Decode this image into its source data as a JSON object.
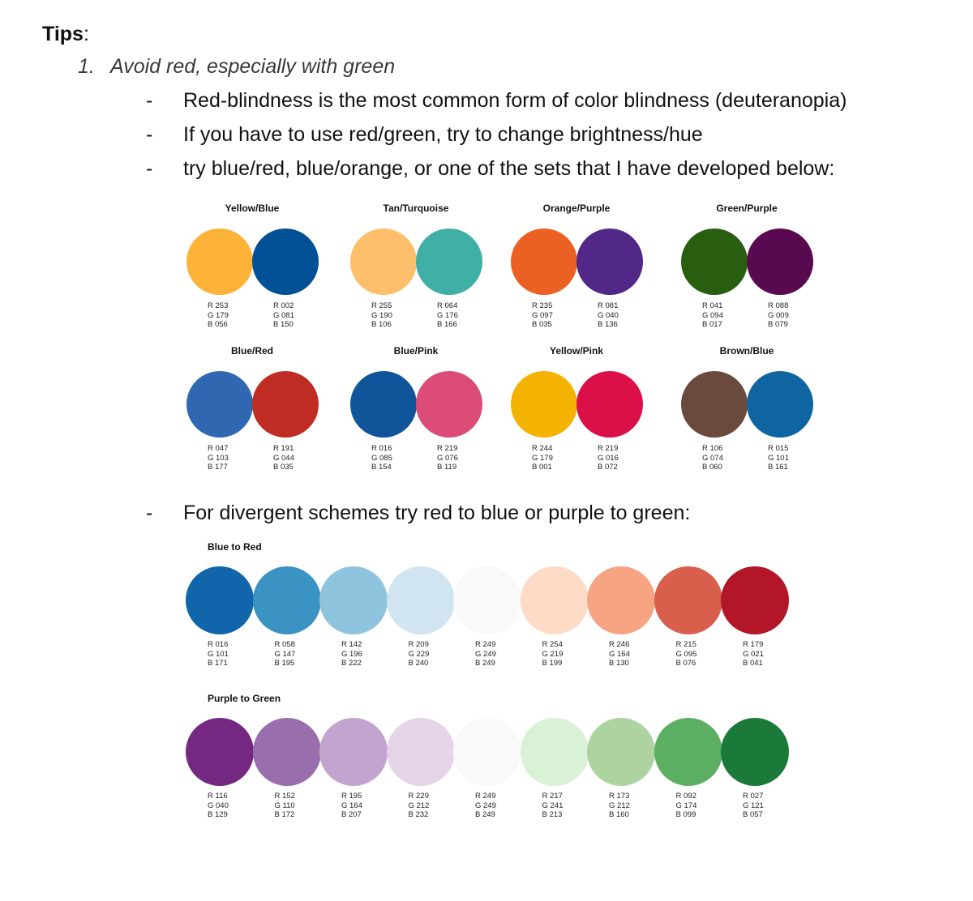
{
  "heading": "Tips",
  "heading_colon": ":",
  "item1": {
    "number": "1.",
    "text": "Avoid red, especially with green"
  },
  "bullets": [
    {
      "dash": "-",
      "text": "Red-blindness is the most common form of color blindness (deuteranopia)"
    },
    {
      "dash": "-",
      "text": "If you have to use red/green, try to change brightness/hue"
    },
    {
      "dash": "-",
      "text": "try blue/red, blue/orange, or one of the sets that I have developed below:"
    },
    {
      "dash": "-",
      "text": "For divergent schemes try red to blue or purple to green:"
    }
  ],
  "pairs": [
    {
      "title": "Yellow/Blue",
      "colors": [
        {
          "hex": "#fdb338",
          "r": "R 253",
          "g": "G 179",
          "b": "B 056"
        },
        {
          "hex": "#025196",
          "r": "R 002",
          "g": "G 081",
          "b": "B 150"
        }
      ]
    },
    {
      "title": "Tan/Turquoise",
      "colors": [
        {
          "hex": "#ffbe6a",
          "r": "R 255",
          "g": "G 190",
          "b": "B 106"
        },
        {
          "hex": "#40b0a6",
          "r": "R 064",
          "g": "G 176",
          "b": "B 166"
        }
      ]
    },
    {
      "title": "Orange/Purple",
      "colors": [
        {
          "hex": "#eb6123",
          "r": "R 235",
          "g": "G 097",
          "b": "B 035"
        },
        {
          "hex": "#512888",
          "r": "R 081",
          "g": "G 040",
          "b": "B 136"
        }
      ]
    },
    {
      "title": "Green/Purple",
      "colors": [
        {
          "hex": "#295e11",
          "r": "R 041",
          "g": "G 094",
          "b": "B 017"
        },
        {
          "hex": "#58094f",
          "r": "R 088",
          "g": "G 009",
          "b": "B 079"
        }
      ]
    },
    {
      "title": "Blue/Red",
      "colors": [
        {
          "hex": "#2f67b1",
          "r": "R 047",
          "g": "G 103",
          "b": "B 177"
        },
        {
          "hex": "#bf2c23",
          "r": "R 191",
          "g": "G 044",
          "b": "B 035"
        }
      ]
    },
    {
      "title": "Blue/Pink",
      "colors": [
        {
          "hex": "#10559a",
          "r": "R 016",
          "g": "G 085",
          "b": "B 154"
        },
        {
          "hex": "#db4c77",
          "r": "R 219",
          "g": "G 076",
          "b": "B 119"
        }
      ]
    },
    {
      "title": "Yellow/Pink",
      "colors": [
        {
          "hex": "#f4b301",
          "r": "R 244",
          "g": "G 179",
          "b": "B 001"
        },
        {
          "hex": "#db1048",
          "r": "R 219",
          "g": "G 016",
          "b": "B 072"
        }
      ]
    },
    {
      "title": "Brown/Blue",
      "colors": [
        {
          "hex": "#6a4a3c",
          "r": "R 106",
          "g": "G 074",
          "b": "B 060"
        },
        {
          "hex": "#0f65a1",
          "r": "R 015",
          "g": "G 101",
          "b": "B 161"
        }
      ]
    }
  ],
  "divergent": [
    {
      "title": "Blue to Red",
      "colors": [
        {
          "hex": "#1065ab",
          "r": "R 016",
          "g": "G 101",
          "b": "B 171"
        },
        {
          "hex": "#3a93c3",
          "r": "R 058",
          "g": "G 147",
          "b": "B 195"
        },
        {
          "hex": "#8ec4de",
          "r": "R 142",
          "g": "G 196",
          "b": "B 222"
        },
        {
          "hex": "#d1e5f0",
          "r": "R 209",
          "g": "G 229",
          "b": "B 240"
        },
        {
          "hex": "#f9f9f9",
          "r": "R 249",
          "g": "G 249",
          "b": "B 249"
        },
        {
          "hex": "#fedbc7",
          "r": "R 254",
          "g": "G 219",
          "b": "B 199"
        },
        {
          "hex": "#f6a482",
          "r": "R 246",
          "g": "G 164",
          "b": "B 130"
        },
        {
          "hex": "#d75f4c",
          "r": "R 215",
          "g": "G 095",
          "b": "B 076"
        },
        {
          "hex": "#b31529",
          "r": "R 179",
          "g": "G 021",
          "b": "B 041"
        }
      ]
    },
    {
      "title": "Purple to Green",
      "colors": [
        {
          "hex": "#742881",
          "r": "R 116",
          "g": "G 040",
          "b": "B 129"
        },
        {
          "hex": "#986eac",
          "r": "R 152",
          "g": "G 110",
          "b": "B 172"
        },
        {
          "hex": "#c3a4cf",
          "r": "R 195",
          "g": "G 164",
          "b": "B 207"
        },
        {
          "hex": "#e5d4e8",
          "r": "R 229",
          "g": "G 212",
          "b": "B 232"
        },
        {
          "hex": "#f9f9f9",
          "r": "R 249",
          "g": "G 249",
          "b": "B 249"
        },
        {
          "hex": "#d9f1d5",
          "r": "R 217",
          "g": "G 241",
          "b": "B 213"
        },
        {
          "hex": "#add4a0",
          "r": "R 173",
          "g": "G 212",
          "b": "B 160"
        },
        {
          "hex": "#5cae63",
          "r": "R 092",
          "g": "G 174",
          "b": "B 099"
        },
        {
          "hex": "#1b7939",
          "r": "R 027",
          "g": "G 121",
          "b": "B 057"
        }
      ]
    }
  ]
}
